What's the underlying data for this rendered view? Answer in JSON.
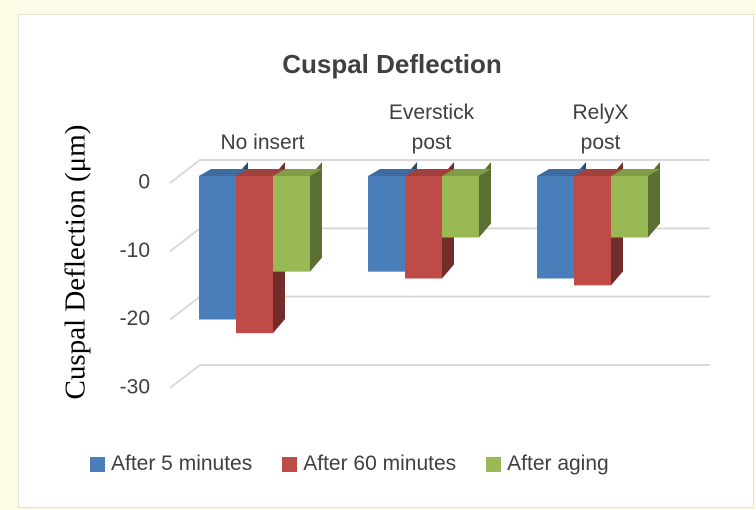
{
  "chart_data": {
    "type": "bar",
    "title": "Cuspal Deflection",
    "y_label": "Cuspal Deflection (μm)",
    "categories": [
      "No insert",
      "Everstick post",
      "RelyX post"
    ],
    "series": [
      {
        "name": "After 5 minutes",
        "color": "#4a7ebb",
        "values": [
          -21,
          -14,
          -15
        ]
      },
      {
        "name": "After 60 minutes",
        "color": "#be4b48",
        "values": [
          -23,
          -15,
          -16
        ]
      },
      {
        "name": "After aging",
        "color": "#98b954",
        "values": [
          -14,
          -9,
          -9
        ]
      }
    ],
    "ylim": [
      -30,
      0
    ],
    "yticks": [
      0,
      -10,
      -20,
      -30
    ],
    "grid": true
  }
}
